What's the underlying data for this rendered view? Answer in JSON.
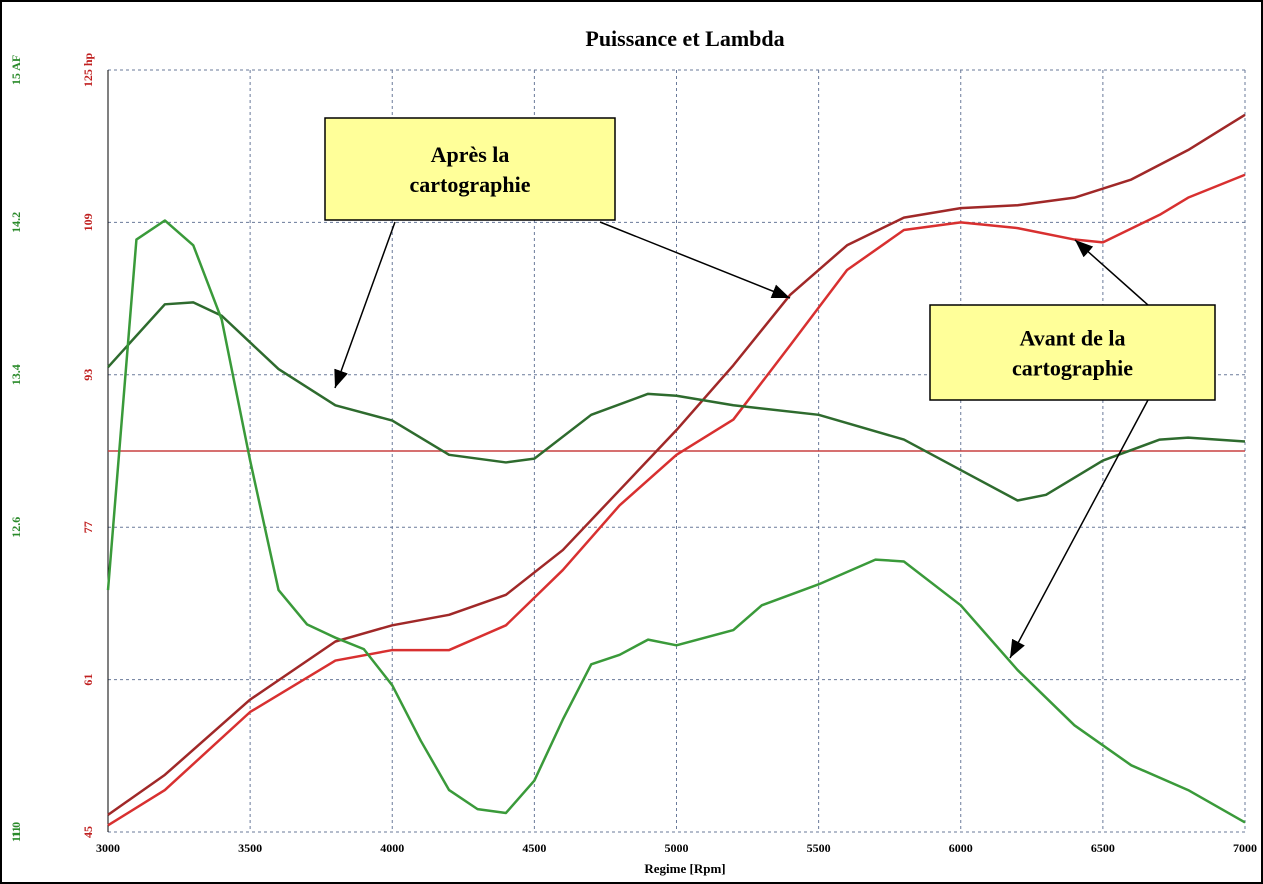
{
  "chart_data": {
    "type": "line",
    "title": "Puissance et Lambda",
    "x_label": "Regime [Rpm]",
    "xlim": [
      3000,
      7000
    ],
    "xticks": [
      3000,
      3500,
      4000,
      4500,
      5000,
      5500,
      6000,
      6500,
      7000
    ],
    "ylim": [
      45,
      125
    ],
    "yticks": [
      45,
      61,
      77,
      93,
      109,
      {
        "value": 125,
        "label": "125 hp"
      }
    ],
    "y2lim": [
      11,
      15
    ],
    "y2ticks": [
      11,
      {
        "value": 11,
        "label": "11.0"
      },
      12.6,
      13.4,
      14.2,
      {
        "value": 15,
        "label": "15 AF"
      }
    ],
    "grid": true,
    "reference_line": {
      "value": 85,
      "color": "#c84040"
    },
    "series": [
      {
        "color": "#a02828",
        "x": [
          3000,
          3200,
          3500,
          3800,
          4000,
          4200,
          4400,
          4600,
          4800,
          5000,
          5200,
          5400,
          5600,
          5800,
          6000,
          6200,
          6400,
          6600,
          6800,
          7000
        ],
        "values": [
          46.8,
          51,
          58.9,
          65,
          66.7,
          67.8,
          69.9,
          74.6,
          80.9,
          87.2,
          94,
          101.4,
          106.6,
          109.5,
          110.5,
          110.8,
          111.6,
          113.5,
          116.6,
          120.3
        ]
      },
      {
        "color": "#d83030",
        "x": [
          3000,
          3200,
          3500,
          3800,
          4000,
          4200,
          4400,
          4600,
          4800,
          5000,
          5200,
          5400,
          5600,
          5800,
          6000,
          6200,
          6400,
          6500,
          6700,
          6800,
          7000
        ],
        "values": [
          45.7,
          49.4,
          57.6,
          63,
          64.1,
          64.1,
          66.7,
          72.5,
          79.3,
          84.6,
          88.3,
          96.1,
          104,
          108.2,
          109,
          108.4,
          107.2,
          106.9,
          109.8,
          111.6,
          114
        ]
      },
      {
        "color": "#2e6b2e",
        "axis": "y2",
        "x": [
          3000,
          3200,
          3300,
          3400,
          3600,
          3800,
          4000,
          4200,
          4400,
          4500,
          4700,
          4900,
          5000,
          5200,
          5500,
          5800,
          6000,
          6200,
          6300,
          6500,
          6700,
          6800,
          7000
        ],
        "values": [
          13.44,
          13.77,
          13.78,
          13.71,
          13.43,
          13.24,
          13.16,
          12.98,
          12.94,
          12.96,
          13.19,
          13.3,
          13.29,
          13.24,
          13.19,
          13.06,
          12.9,
          12.74,
          12.77,
          12.95,
          13.06,
          13.07,
          13.05
        ]
      },
      {
        "color": "#3a9a3a",
        "axis": "y2",
        "x": [
          3000,
          3100,
          3200,
          3300,
          3400,
          3500,
          3600,
          3700,
          3800,
          3900,
          4000,
          4100,
          4200,
          4300,
          4400,
          4500,
          4600,
          4700,
          4800,
          4900,
          5000,
          5200,
          5300,
          5500,
          5700,
          5800,
          6000,
          6200,
          6400,
          6600,
          6800,
          7000
        ],
        "values": [
          12.27,
          14.11,
          14.21,
          14.08,
          13.69,
          12.95,
          12.27,
          12.09,
          12.02,
          11.96,
          11.77,
          11.48,
          11.22,
          11.12,
          11.1,
          11.27,
          11.59,
          11.88,
          11.93,
          12.01,
          11.98,
          12.06,
          12.19,
          12.3,
          12.43,
          12.42,
          12.19,
          11.85,
          11.56,
          11.35,
          11.22,
          11.05
        ]
      }
    ],
    "annotations": [
      {
        "lines": [
          "Après la",
          "cartographie"
        ]
      },
      {
        "lines": [
          "Avant de la",
          "cartographie"
        ]
      }
    ]
  }
}
